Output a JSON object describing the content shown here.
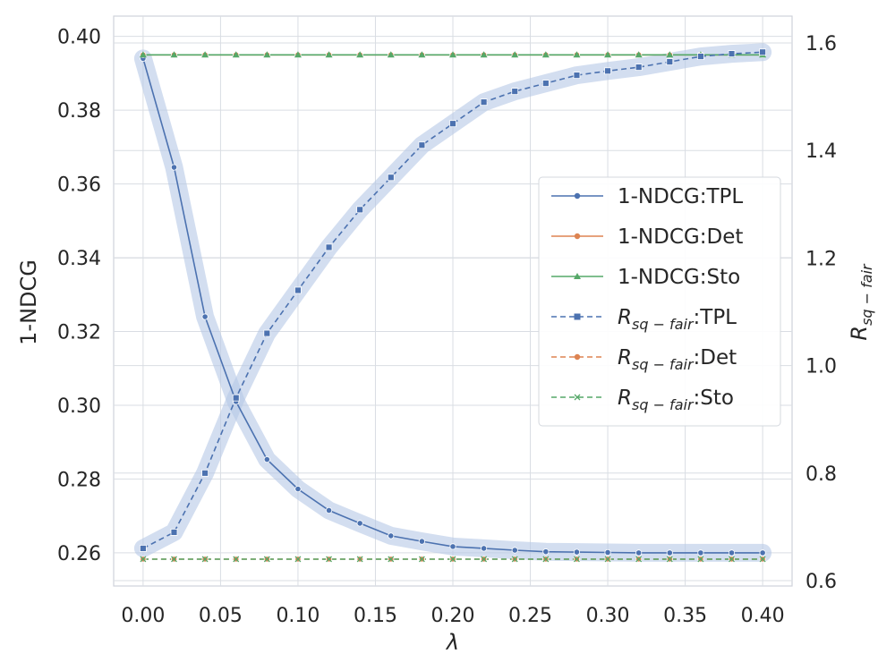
{
  "chart_data": {
    "type": "line",
    "x_label": "λ",
    "y_label_left": "1-NDCG",
    "y_label_right": "R_sq−fair",
    "x": [
      0.0,
      0.02,
      0.04,
      0.06,
      0.08,
      0.1,
      0.12,
      0.14,
      0.16,
      0.18,
      0.2,
      0.22,
      0.24,
      0.26,
      0.28,
      0.3,
      0.32,
      0.34,
      0.36,
      0.38,
      0.4
    ],
    "x_ticks": [
      "0.00",
      "0.05",
      "0.10",
      "0.15",
      "0.20",
      "0.25",
      "0.30",
      "0.35",
      "0.40"
    ],
    "x_tick_values": [
      0.0,
      0.05,
      0.1,
      0.15,
      0.2,
      0.25,
      0.3,
      0.35,
      0.4
    ],
    "y_left_ticks": [
      "0.26",
      "0.28",
      "0.30",
      "0.32",
      "0.34",
      "0.36",
      "0.38",
      "0.40"
    ],
    "y_left_tick_values": [
      0.26,
      0.28,
      0.3,
      0.32,
      0.34,
      0.36,
      0.38,
      0.4
    ],
    "y_right_ticks": [
      "0.6",
      "0.8",
      "1.0",
      "1.2",
      "1.4",
      "1.6"
    ],
    "y_right_tick_values": [
      0.6,
      0.8,
      1.0,
      1.2,
      1.4,
      1.6
    ],
    "x_range": [
      -0.019,
      0.419
    ],
    "y_left_range": [
      0.251,
      0.4055
    ],
    "y_right_range": [
      0.6,
      1.6
    ],
    "y_right_range_note_values": [
      0.59,
      1.65
    ],
    "grid": true,
    "legend_position": "center-right",
    "series": [
      {
        "name": "1-NDCG:TPL",
        "axis": "left",
        "color": "#4c72b0",
        "dash": "solid",
        "marker": "circle",
        "values": [
          0.394,
          0.3645,
          0.324,
          0.301,
          0.2853,
          0.2773,
          0.2715,
          0.268,
          0.2646,
          0.2631,
          0.2617,
          0.2612,
          0.2607,
          0.2603,
          0.2602,
          0.2601,
          0.26,
          0.26,
          0.26,
          0.26,
          0.26
        ]
      },
      {
        "name": "1-NDCG:Det",
        "axis": "left",
        "color": "#dd8452",
        "dash": "solid",
        "marker": "circle",
        "values": [
          0.395,
          0.395,
          0.395,
          0.395,
          0.395,
          0.395,
          0.395,
          0.395,
          0.395,
          0.395,
          0.395,
          0.395,
          0.395,
          0.395,
          0.395,
          0.395,
          0.395,
          0.395,
          0.395,
          0.395,
          0.395
        ]
      },
      {
        "name": "1-NDCG:Sto",
        "axis": "left",
        "color": "#55a868",
        "dash": "solid",
        "marker": "triangle",
        "values": [
          0.395,
          0.395,
          0.395,
          0.395,
          0.395,
          0.395,
          0.395,
          0.395,
          0.395,
          0.395,
          0.395,
          0.395,
          0.395,
          0.395,
          0.395,
          0.395,
          0.395,
          0.395,
          0.395,
          0.395,
          0.395
        ]
      },
      {
        "name": "R_sq−fair:TPL",
        "axis": "right",
        "color": "#4c72b0",
        "dash": "dashed",
        "marker": "square",
        "values": [
          0.66,
          0.69,
          0.8,
          0.94,
          1.06,
          1.14,
          1.22,
          1.29,
          1.35,
          1.41,
          1.45,
          1.49,
          1.51,
          1.525,
          1.54,
          1.548,
          1.555,
          1.565,
          1.575,
          1.58,
          1.583
        ]
      },
      {
        "name": "R_sq−fair:Det",
        "axis": "right",
        "color": "#dd8452",
        "dash": "dashed",
        "marker": "circle",
        "values": [
          0.64,
          0.64,
          0.64,
          0.64,
          0.64,
          0.64,
          0.64,
          0.64,
          0.64,
          0.64,
          0.64,
          0.64,
          0.64,
          0.64,
          0.64,
          0.64,
          0.64,
          0.64,
          0.64,
          0.64,
          0.64
        ]
      },
      {
        "name": "R_sq−fair:Sto",
        "axis": "right",
        "color": "#55a868",
        "dash": "dashed",
        "marker": "x",
        "values": [
          0.64,
          0.64,
          0.64,
          0.64,
          0.64,
          0.64,
          0.64,
          0.64,
          0.64,
          0.64,
          0.64,
          0.64,
          0.64,
          0.64,
          0.64,
          0.64,
          0.64,
          0.64,
          0.64,
          0.64,
          0.64
        ]
      }
    ],
    "legend": [
      {
        "prefix": "1-NDCG:TPL",
        "suffix": ""
      },
      {
        "prefix": "1-NDCG:Det",
        "suffix": ""
      },
      {
        "prefix": "1-NDCG:Sto",
        "suffix": ""
      },
      {
        "prefix": "R",
        "sub": "sq − fair",
        "suffix": ":TPL"
      },
      {
        "prefix": "R",
        "sub": "sq − fair",
        "suffix": ":Det"
      },
      {
        "prefix": "R",
        "sub": "sq − fair",
        "suffix": ":Sto"
      }
    ]
  }
}
